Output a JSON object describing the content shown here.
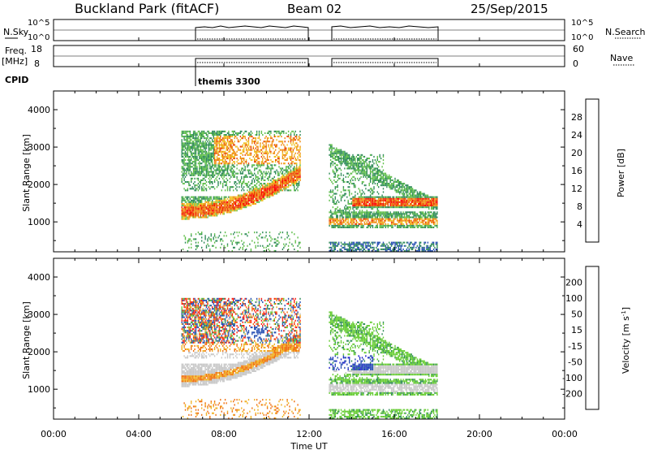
{
  "header": {
    "title": "Buckland Park (fitACF)",
    "beam": "Beam 02",
    "date": "25/Sep/2015"
  },
  "chart_data": [
    {
      "type": "line",
      "name": "noise",
      "left_label": "N.Sky",
      "right_label": "N.Search",
      "left_ticks": [
        "10^5",
        "10^0"
      ],
      "right_ticks": [
        "10^5",
        "10^0"
      ]
    },
    {
      "type": "line",
      "name": "frequency",
      "left_label_top": "Freq.",
      "left_label_bottom": "[MHz]",
      "right_label": "Nave",
      "left_ticks": [
        "18",
        "8"
      ],
      "right_ticks": [
        "60",
        "0"
      ],
      "cpid_label": "CPID",
      "cpid_text": "themis 3300"
    },
    {
      "type": "heatmap",
      "name": "power",
      "ylabel": "Slant Range [km]",
      "yticks": [
        1000,
        2000,
        3000,
        4000
      ],
      "ylim": [
        200,
        4500
      ],
      "xlim": [
        0,
        24
      ],
      "colorbar_label": "Power [dB]",
      "colorbar_ticks": [
        "4",
        "8",
        "12",
        "16",
        "20",
        "24",
        "28"
      ],
      "colorbar_colors": [
        "#1a1aff",
        "#2850b4",
        "#2e8b57",
        "#5fbf4a",
        "#f0c020",
        "#f08c10",
        "#e84000",
        "#ff0000"
      ]
    },
    {
      "type": "heatmap",
      "name": "velocity",
      "ylabel": "Slant Range [km]",
      "yticks": [
        1000,
        2000,
        3000,
        4000
      ],
      "ylim": [
        200,
        4500
      ],
      "xlim": [
        0,
        24
      ],
      "xlabel": "Time UT",
      "xticks": [
        "00:00",
        "04:00",
        "08:00",
        "12:00",
        "16:00",
        "20:00",
        "00:00"
      ],
      "colorbar_label_main": "Velocity [m s",
      "colorbar_label_sup": "-1",
      "colorbar_label_end": "]",
      "colorbar_ticks": [
        "200",
        "100",
        "50",
        "15",
        "-15",
        "-50",
        "-100",
        "-200"
      ],
      "colorbar_colors": [
        "#1a1acc",
        "#2850b4",
        "#2e8b57",
        "#66cc33",
        "#c8c8c8",
        "#f0b020",
        "#f07010",
        "#ff2010",
        "#ff0000"
      ]
    }
  ]
}
